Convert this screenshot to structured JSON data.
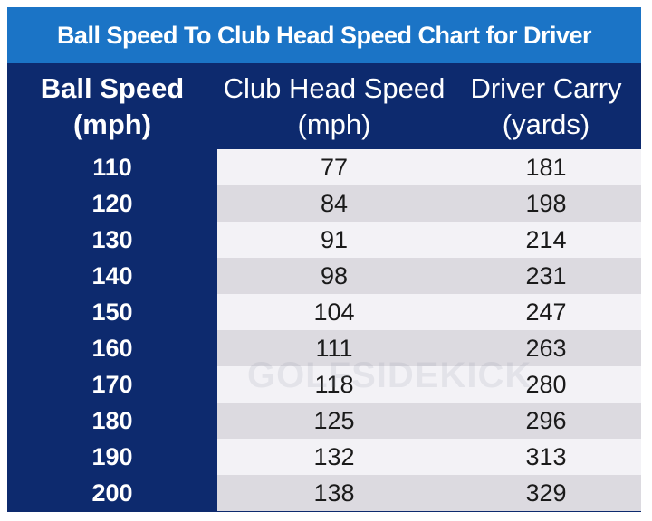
{
  "chart_data": {
    "type": "table",
    "title": "Ball Speed To Club Head Speed Chart for Driver",
    "columns": [
      {
        "line1": "Ball Speed",
        "line2": "(mph)"
      },
      {
        "line1": "Club Head Speed",
        "line2": "(mph)"
      },
      {
        "line1": "Driver Carry",
        "line2": "(yards)"
      }
    ],
    "rows": [
      [
        "110",
        "77",
        "181"
      ],
      [
        "120",
        "84",
        "198"
      ],
      [
        "130",
        "91",
        "214"
      ],
      [
        "140",
        "98",
        "231"
      ],
      [
        "150",
        "104",
        "247"
      ],
      [
        "160",
        "111",
        "263"
      ],
      [
        "170",
        "118",
        "280"
      ],
      [
        "180",
        "125",
        "296"
      ],
      [
        "190",
        "132",
        "313"
      ],
      [
        "200",
        "138",
        "329"
      ]
    ]
  },
  "watermark": "GOLFSIDEKICK",
  "colors": {
    "title_bg": "#1b74c6",
    "header_bg": "#0d2a6e",
    "row_light": "#f3f2f6",
    "row_dark": "#dcdae0"
  }
}
